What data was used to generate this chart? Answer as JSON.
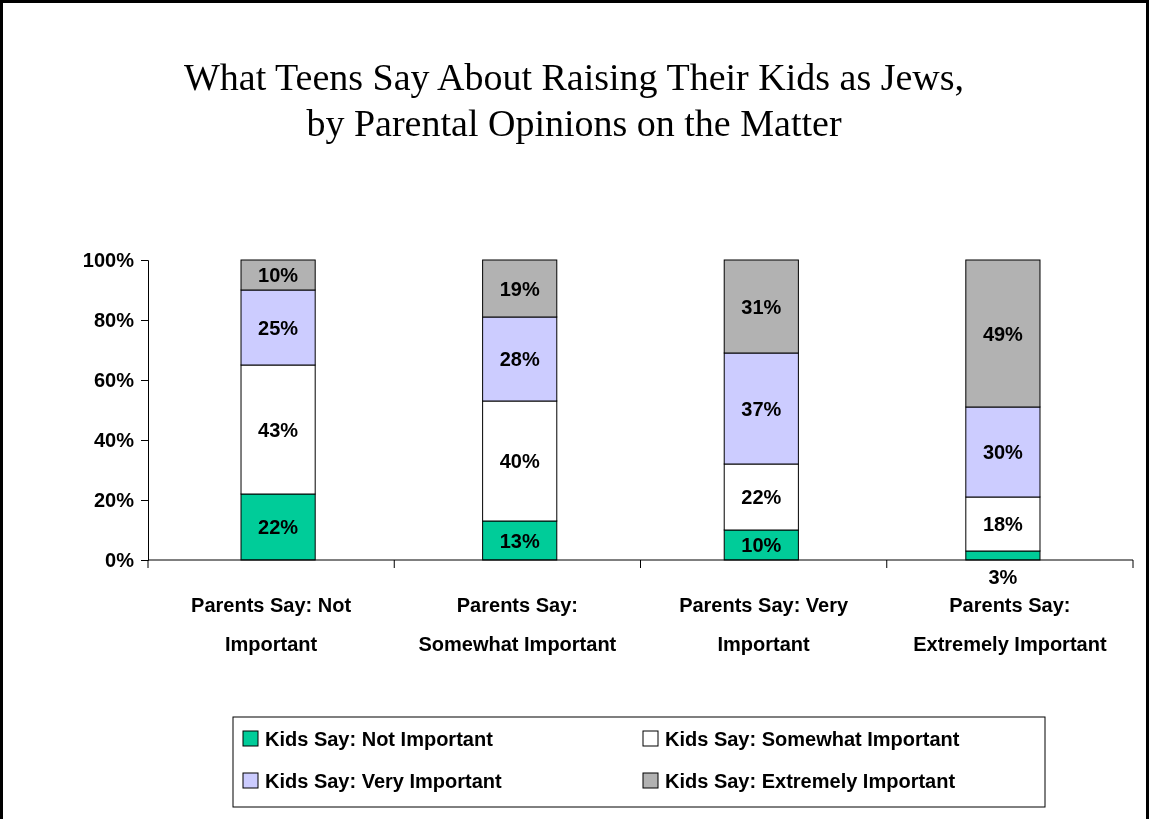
{
  "chart_data": {
    "type": "bar",
    "stacked": true,
    "title": "What Teens Say About Raising Their Kids as Jews, by Parental Opinions on the Matter",
    "categories": [
      "Parents Say: Not Important",
      "Parents Say: Somewhat Important",
      "Parents Say: Very Important",
      "Parents Say: Extremely Important"
    ],
    "series": [
      {
        "name": "Kids Say: Not Important",
        "color": "#00cc99",
        "values": [
          22,
          13,
          10,
          3
        ]
      },
      {
        "name": "Kids Say: Somewhat Important",
        "color": "#ffffff",
        "values": [
          43,
          40,
          22,
          18
        ]
      },
      {
        "name": "Kids Say: Very Important",
        "color": "#ccccff",
        "values": [
          25,
          28,
          37,
          30
        ]
      },
      {
        "name": "Kids Say: Extremely Important",
        "color": "#b2b2b2",
        "values": [
          10,
          19,
          31,
          49
        ]
      }
    ],
    "value_labels": [
      [
        "22%",
        "13%",
        "10%",
        "3%"
      ],
      [
        "43%",
        "40%",
        "22%",
        "18%"
      ],
      [
        "25%",
        "28%",
        "37%",
        "30%"
      ],
      [
        "10%",
        "19%",
        "31%",
        "49%"
      ]
    ],
    "ylim": [
      0,
      100
    ],
    "yticks": [
      {
        "value": 0,
        "label": "0%"
      },
      {
        "value": 20,
        "label": "20%"
      },
      {
        "value": 40,
        "label": "40%"
      },
      {
        "value": 60,
        "label": "60%"
      },
      {
        "value": 80,
        "label": "80%"
      },
      {
        "value": 100,
        "label": "100%"
      }
    ],
    "grid": false,
    "legend": "bottom"
  }
}
